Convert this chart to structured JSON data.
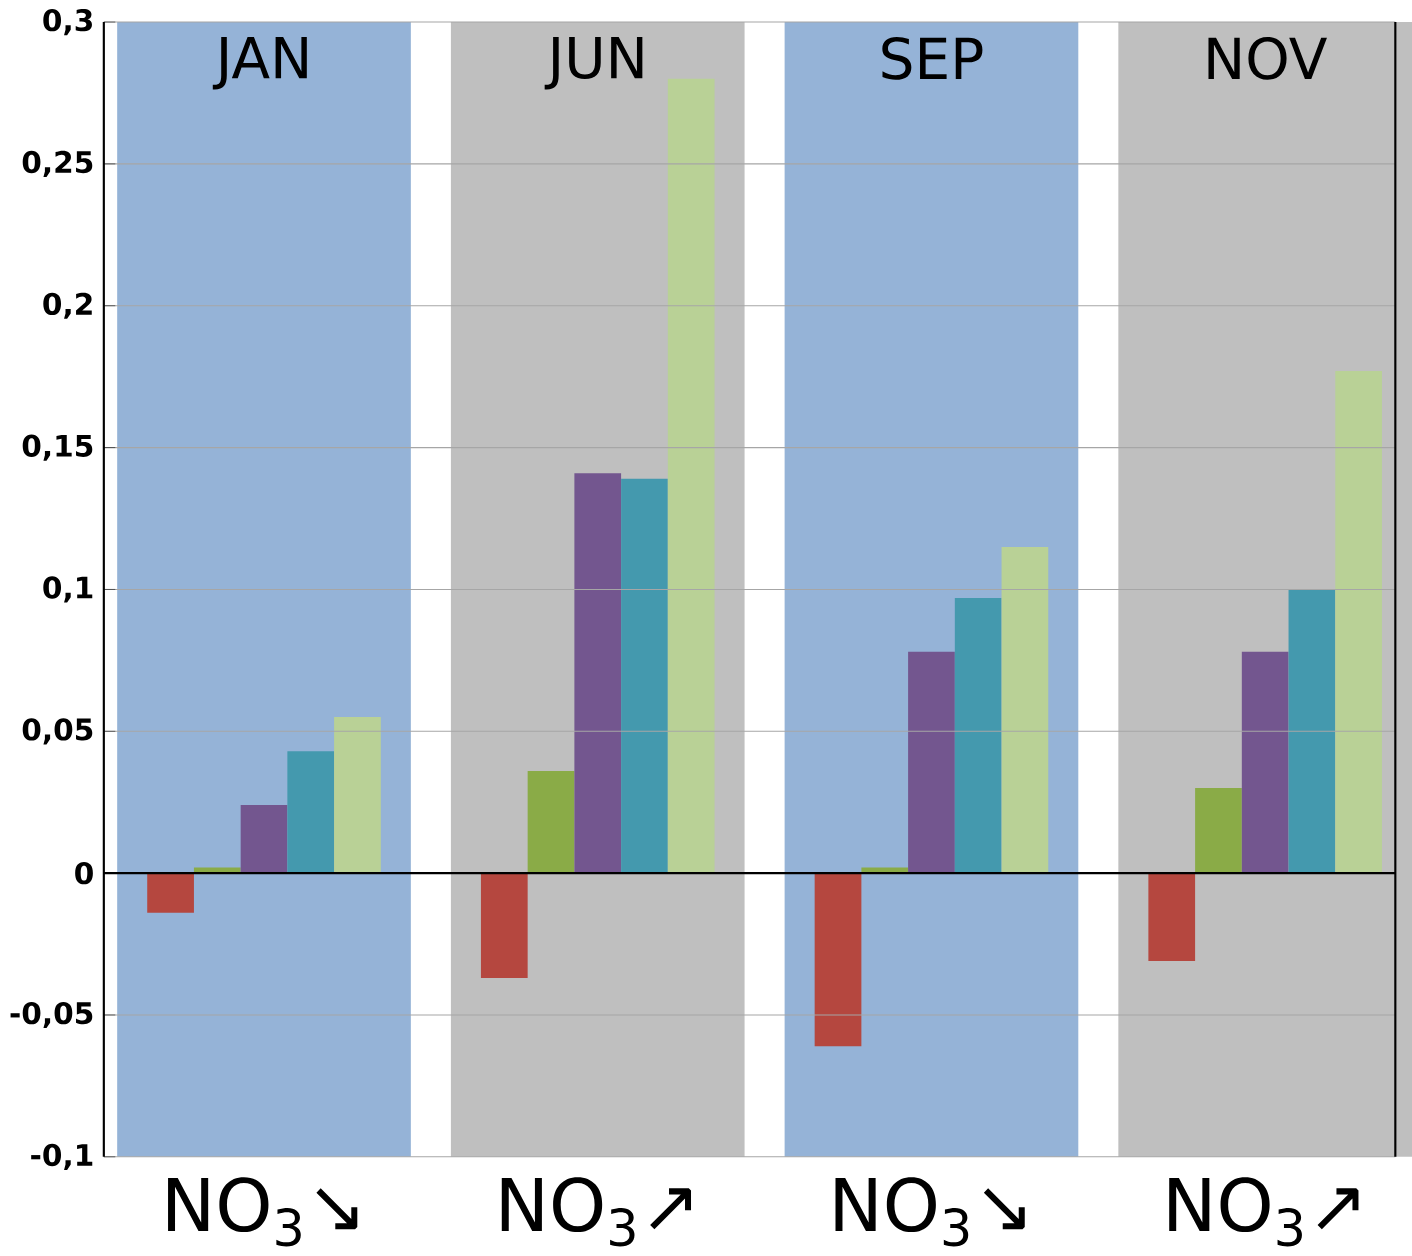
{
  "chart_data": {
    "type": "bar",
    "categories": [
      "JAN",
      "JUN",
      "SEP",
      "NOV"
    ],
    "series": [
      {
        "color": "#b5473f",
        "values": [
          -0.014,
          -0.037,
          -0.061,
          -0.031
        ]
      },
      {
        "color": "#8aab47",
        "values": [
          0.002,
          0.036,
          0.002,
          0.03
        ]
      },
      {
        "color": "#73568f",
        "values": [
          0.024,
          0.141,
          0.078,
          0.078
        ]
      },
      {
        "color": "#4499ae",
        "values": [
          0.043,
          0.139,
          0.097,
          0.1
        ]
      },
      {
        "color": "#b9d196",
        "values": [
          0.055,
          0.28,
          0.115,
          0.177
        ]
      }
    ],
    "bands": [
      {
        "axis": "x",
        "from": "JAN",
        "to": "JAN",
        "label": "NO$_{3}$↘",
        "color": "#95b3d7"
      },
      {
        "axis": "x",
        "from": "JUN",
        "to": "JUN",
        "label": "NO$_{3}$↗",
        "color": "#bfbfbf"
      },
      {
        "axis": "x",
        "from": "SEP",
        "to": "SEP",
        "label": "NO$_{3}$↘",
        "color": "#95b3d7"
      },
      {
        "axis": "x",
        "from": "NOV",
        "to": "NOV",
        "label": "NO$_{3}$↗",
        "color": "#bfbfbf"
      }
    ],
    "ylim": [
      -0.1,
      0.3
    ],
    "yticks": [
      {
        "value": -0.1,
        "label": "-0,1"
      },
      {
        "value": -0.05,
        "label": "-0,05"
      },
      0,
      {
        "value": 0.05,
        "label": "0,05"
      },
      {
        "value": 0.1,
        "label": "0,1"
      },
      {
        "value": 0.15,
        "label": "0,15"
      },
      {
        "value": 0.2,
        "label": "0,2"
      },
      {
        "value": 0.25,
        "label": "0,25"
      },
      {
        "value": 0.3,
        "label": "0,3"
      }
    ],
    "grid": "y"
  }
}
